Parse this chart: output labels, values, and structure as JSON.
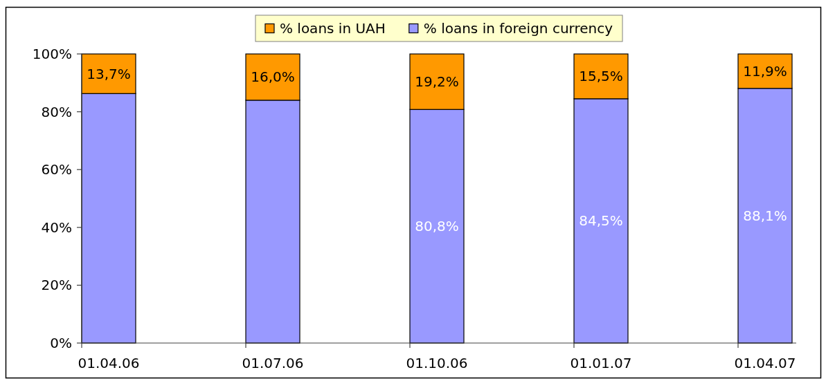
{
  "chart_data": {
    "type": "bar",
    "stacked": true,
    "categories": [
      "01.04.06",
      "01.07.06",
      "01.10.06",
      "01.01.07",
      "01.04.07"
    ],
    "series": [
      {
        "name": "% loans in foreign currency",
        "color": "#9999ff",
        "values": [
          86.3,
          84.0,
          80.8,
          84.5,
          88.1
        ],
        "value_labels": [
          null,
          null,
          "80,8%",
          "84,5%",
          "88,1%"
        ]
      },
      {
        "name": "% loans in UAH",
        "color": "#ff9900",
        "values": [
          13.7,
          16.0,
          19.2,
          15.5,
          11.9
        ],
        "value_labels": [
          "13,7%",
          "16,0%",
          "19,2%",
          "15,5%",
          "11,9%"
        ]
      }
    ],
    "ylim": [
      0,
      100
    ],
    "yticks": [
      {
        "value": 0,
        "label": "0%"
      },
      {
        "value": 20,
        "label": "20%"
      },
      {
        "value": 40,
        "label": "40%"
      },
      {
        "value": 60,
        "label": "60%"
      },
      {
        "value": 80,
        "label": "80%"
      },
      {
        "value": 100,
        "label": "100%"
      }
    ],
    "grid": false,
    "legend": "top"
  }
}
